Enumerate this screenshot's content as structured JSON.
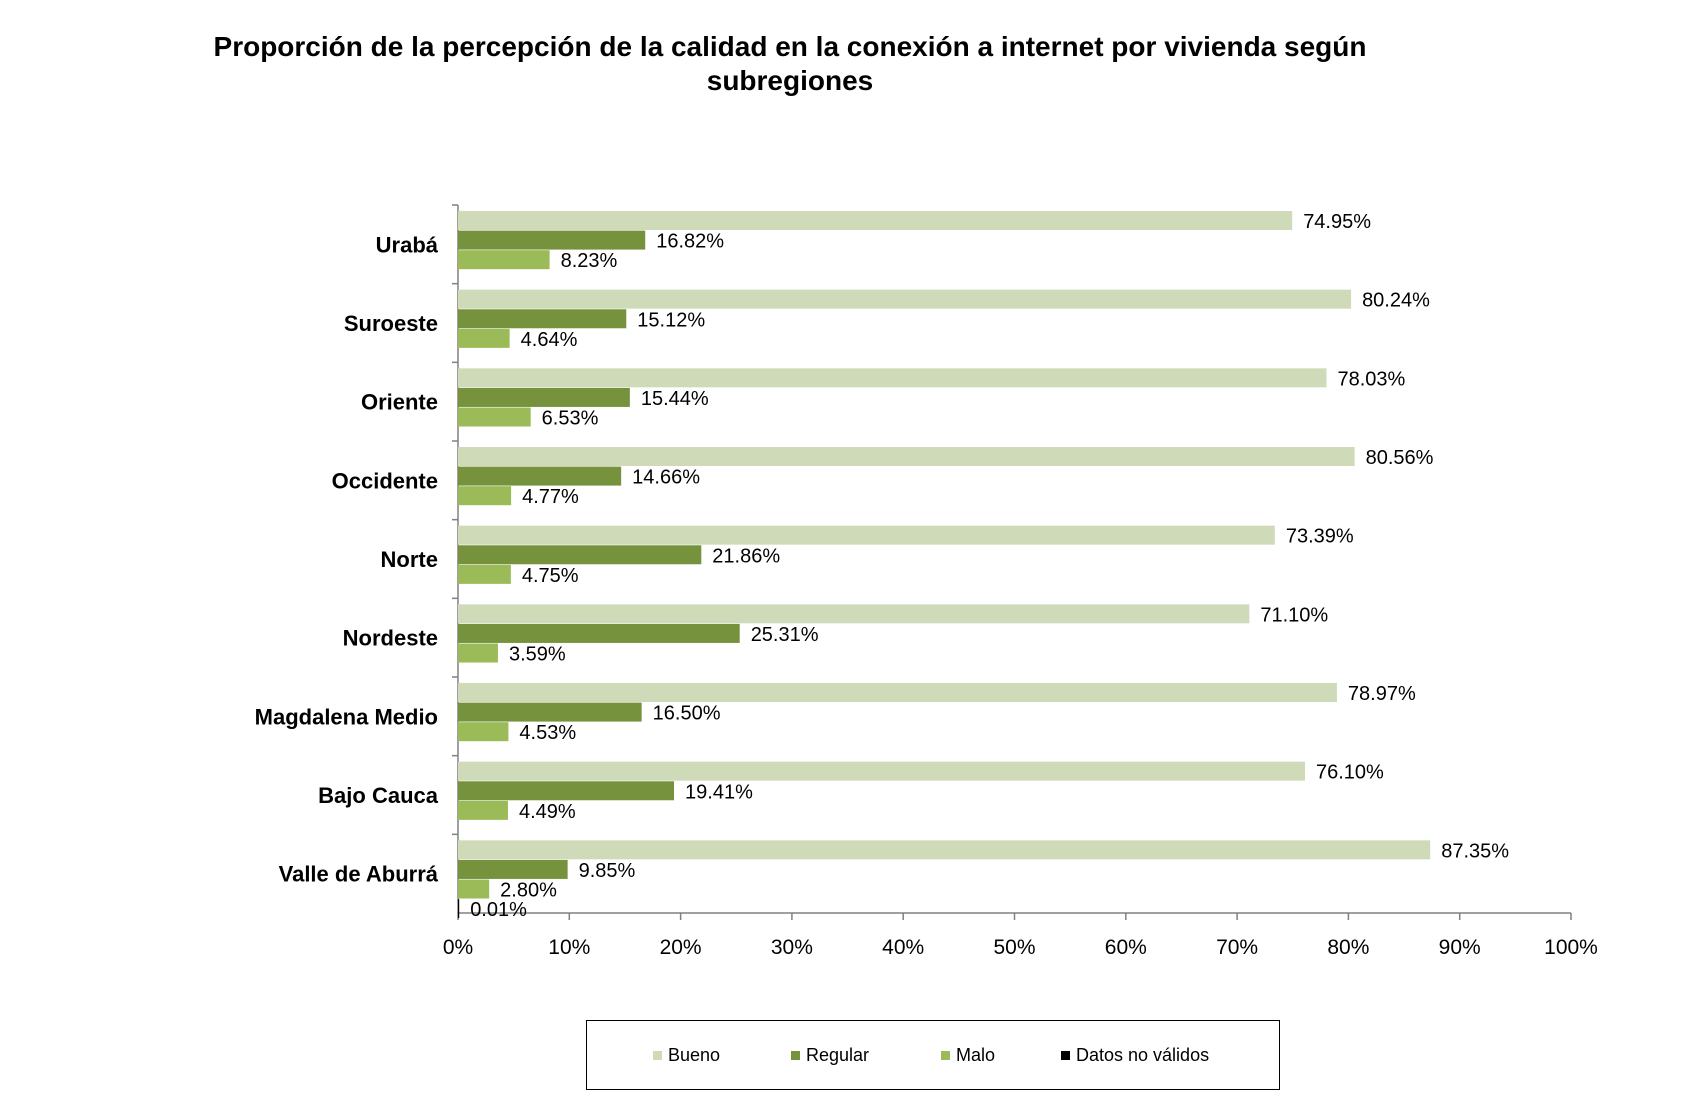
{
  "chart_data": {
    "type": "bar",
    "orientation": "horizontal",
    "title": "Proporción de la percepción de la calidad en la conexión a internet por vivienda según subregiones",
    "title_lines": [
      "Proporción de la percepción de la calidad en la conexión a internet por vivienda según",
      "subregiones"
    ],
    "categories": [
      "Urabá",
      "Suroeste",
      "Oriente",
      "Occidente",
      "Norte",
      "Nordeste",
      "Magdalena Medio",
      "Bajo Cauca",
      "Valle de Aburrá"
    ],
    "series": [
      {
        "name": "Bueno",
        "color": "#cfdbb8",
        "values": [
          74.95,
          80.24,
          78.03,
          80.56,
          73.39,
          71.1,
          78.97,
          76.1,
          87.35
        ],
        "labels": [
          "74.95%",
          "80.24%",
          "78.03%",
          "80.56%",
          "73.39%",
          "71.10%",
          "78.97%",
          "76.10%",
          "87.35%"
        ]
      },
      {
        "name": "Regular",
        "color": "#76923c",
        "values": [
          16.82,
          15.12,
          15.44,
          14.66,
          21.86,
          25.31,
          16.5,
          19.41,
          9.85
        ],
        "labels": [
          "16.82%",
          "15.12%",
          "15.44%",
          "14.66%",
          "21.86%",
          "25.31%",
          "16.50%",
          "19.41%",
          "9.85%"
        ]
      },
      {
        "name": "Malo",
        "color": "#9bbb59",
        "values": [
          8.23,
          4.64,
          6.53,
          4.77,
          4.75,
          3.59,
          4.53,
          4.49,
          2.8
        ],
        "labels": [
          "8.23%",
          "4.64%",
          "6.53%",
          "4.77%",
          "4.75%",
          "3.59%",
          "4.53%",
          "4.49%",
          "2.80%"
        ]
      },
      {
        "name": "Datos no válidos",
        "color": "#000000",
        "values": [
          null,
          null,
          null,
          null,
          null,
          null,
          null,
          null,
          0.01
        ],
        "labels": [
          null,
          null,
          null,
          null,
          null,
          null,
          null,
          null,
          "0.01%"
        ]
      }
    ],
    "x_ticks": [
      "0%",
      "10%",
      "20%",
      "30%",
      "40%",
      "50%",
      "60%",
      "70%",
      "80%",
      "90%",
      "100%"
    ],
    "xlim": [
      0,
      100
    ],
    "grid": false,
    "legend_position": "bottom"
  }
}
